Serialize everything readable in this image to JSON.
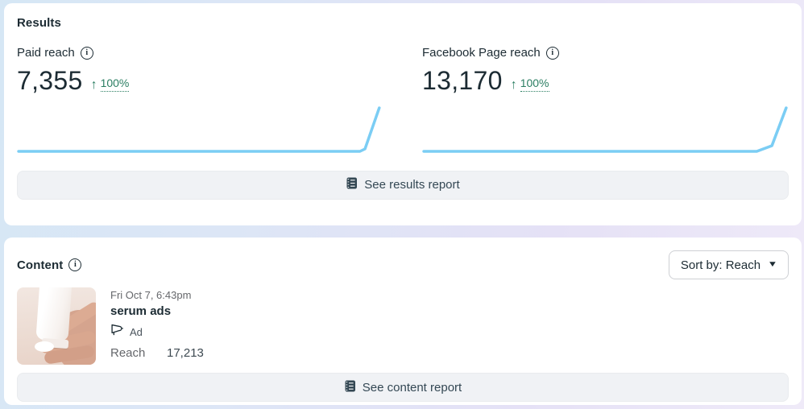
{
  "colors": {
    "chart_line": "#7bcdf4",
    "positive_trend": "#2b7e62",
    "text_dark": "#1c2b33",
    "text_gray": "#65676b",
    "button_bg": "#f0f2f5",
    "page_gradient_left": "#d6e7f5",
    "page_gradient_right": "#efeaf8"
  },
  "icons": {
    "info": "i",
    "caret_down": "▼"
  },
  "results_card": {
    "title": "Results",
    "metrics": [
      {
        "label": "Paid reach",
        "value": "7,355",
        "trend_arrow": "↑",
        "trend_pct": "100%"
      },
      {
        "label": "Facebook Page reach",
        "value": "13,170",
        "trend_arrow": "↑",
        "trend_pct": "100%"
      }
    ],
    "button_label": "See results report"
  },
  "content_card": {
    "title": "Content",
    "sort_label": "Sort by: Reach",
    "post": {
      "timestamp": "Fri Oct 7, 6:43pm",
      "title": "serum ads",
      "type_label": "Ad",
      "stat_label": "Reach",
      "stat_value": "17,213"
    },
    "button_label": "See content report"
  },
  "chart_data": [
    {
      "type": "line",
      "name": "Paid reach trend",
      "title": "",
      "xlabel": "",
      "ylabel": "",
      "axes_visible": false,
      "grid": false,
      "legend": false,
      "series": [
        {
          "name": "Paid reach",
          "values": [
            0,
            0,
            0,
            0,
            0,
            0,
            7355
          ]
        }
      ],
      "shape_note": "flat at zero, sharp spike at far right",
      "line_color": "#7bcdf4",
      "polyline": [
        [
          2,
          58
        ],
        [
          408,
          58
        ],
        [
          414,
          55
        ],
        [
          431,
          4
        ]
      ],
      "viewbox_w": 436,
      "viewbox_h": 64
    },
    {
      "type": "line",
      "name": "Facebook Page reach trend",
      "title": "",
      "xlabel": "",
      "ylabel": "",
      "axes_visible": false,
      "grid": false,
      "legend": false,
      "series": [
        {
          "name": "Facebook Page reach",
          "values": [
            0,
            0,
            0,
            0,
            0,
            0,
            13170
          ]
        }
      ],
      "shape_note": "flat at zero, sharp spike at far right",
      "line_color": "#7bcdf4",
      "polyline": [
        [
          2,
          58
        ],
        [
          398,
          58
        ],
        [
          416,
          51
        ],
        [
          433,
          4
        ]
      ],
      "viewbox_w": 436,
      "viewbox_h": 64
    }
  ]
}
